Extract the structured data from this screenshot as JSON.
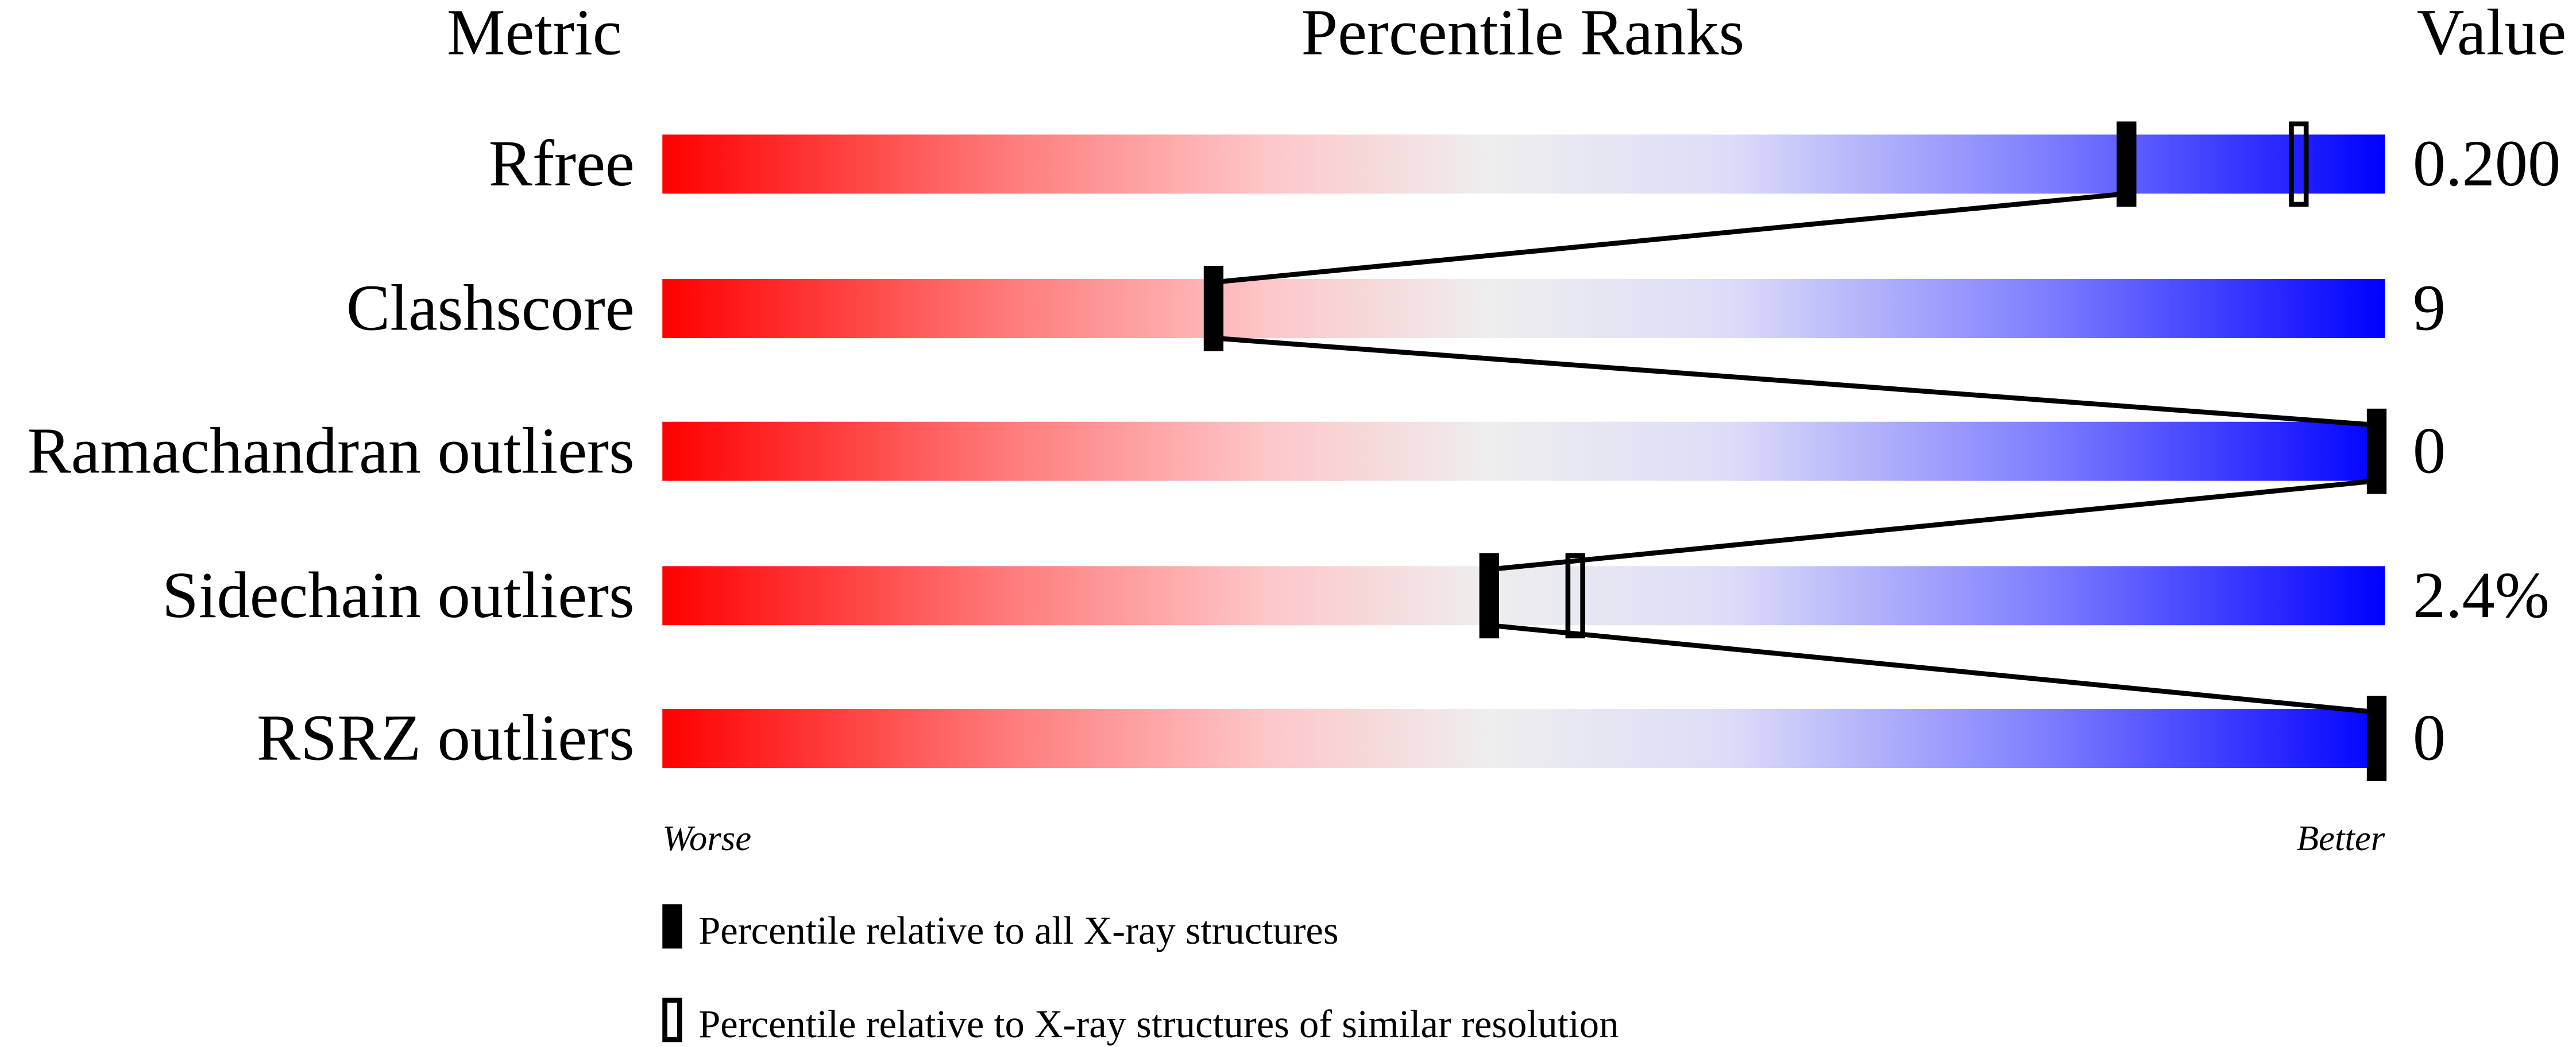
{
  "chart_data": {
    "type": "table",
    "headers": {
      "metric": "Metric",
      "ranks": "Percentile Ranks",
      "value": "Value"
    },
    "percentile_range": [
      0,
      100
    ],
    "rows": [
      {
        "metric": "Rfree",
        "value": "0.200",
        "percentile_all": 85,
        "percentile_similar": 95
      },
      {
        "metric": "Clashscore",
        "value": "9",
        "percentile_all": 32,
        "percentile_similar": null
      },
      {
        "metric": "Ramachandran outliers",
        "value": "0",
        "percentile_all": 100,
        "percentile_similar": null
      },
      {
        "metric": "Sidechain outliers",
        "value": "2.4%",
        "percentile_all": 48,
        "percentile_similar": 53
      },
      {
        "metric": "RSRZ outliers",
        "value": "0",
        "percentile_all": 100,
        "percentile_similar": null
      }
    ],
    "axis_labels": {
      "left": "Worse",
      "right": "Better"
    },
    "legend": [
      {
        "marker": "filled",
        "label": "Percentile relative to all X-ray structures"
      },
      {
        "marker": "open",
        "label": "Percentile relative to X-ray structures of similar resolution"
      }
    ],
    "colors": {
      "worse": "#ff0000",
      "middle": "#eeeeee",
      "better": "#0000ff",
      "marker": "#000000"
    }
  }
}
